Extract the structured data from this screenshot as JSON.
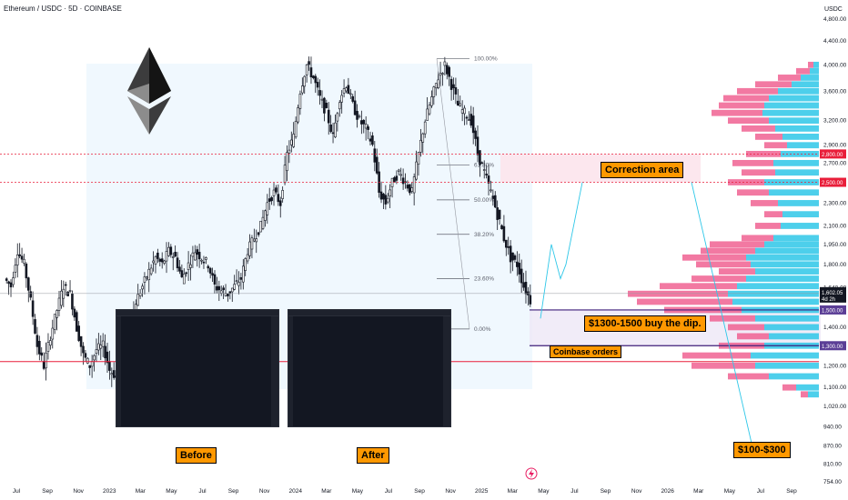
{
  "header": {
    "title": "Ethereum / USDC · 5D · COINBASE",
    "currency": "USDC"
  },
  "colors": {
    "up": "#131722",
    "down": "#131722",
    "red_line": "#e91e3a",
    "purple": "#7b5ba8",
    "cyan": "#2ec7e8",
    "pink": "#f06292",
    "orange": "#ff9800"
  },
  "chart_data": {
    "type": "candlestick",
    "y_axis": {
      "min": 754,
      "max": 5000,
      "scale": "log",
      "ticks": [
        "4,800.00",
        "4,400.00",
        "4,000.00",
        "3,600.00",
        "3,200.00",
        "2,900.00",
        "2,700.00",
        "2,500.00",
        "2,300.00",
        "2,100.00",
        "1,950.00",
        "1,800.00",
        "1,640.00",
        "1,500.00",
        "1,400.00",
        "1,300.00",
        "1,200.00",
        "1,100.00",
        "1,020.00",
        "940.00",
        "870.00",
        "810.00",
        "754.00"
      ],
      "tick_values": [
        4800,
        4400,
        4000,
        3600,
        3200,
        2900,
        2700,
        2500,
        2300,
        2100,
        1950,
        1800,
        1640,
        1500,
        1400,
        1300,
        1200,
        1100,
        1020,
        940,
        870,
        810,
        754
      ]
    },
    "x_axis": {
      "ticks": [
        "Jul",
        "Sep",
        "Nov",
        "2023",
        "Mar",
        "May",
        "Jul",
        "Sep",
        "Nov",
        "2024",
        "Mar",
        "May",
        "Jul",
        "Sep",
        "Nov",
        "2025",
        "Mar",
        "May",
        "Jul",
        "Sep",
        "Nov",
        "2026",
        "Mar",
        "May",
        "Jul",
        "Sep"
      ]
    },
    "price_series": [
      1700,
      1650,
      1900,
      1800,
      1550,
      1300,
      1200,
      1350,
      1500,
      1650,
      1600,
      1400,
      1250,
      1200,
      1280,
      1300,
      1180,
      1150,
      1250,
      1350,
      1550,
      1650,
      1750,
      1850,
      1800,
      1900,
      1850,
      1700,
      1800,
      1900,
      1850,
      1800,
      1650,
      1620,
      1600,
      1650,
      1700,
      1900,
      2000,
      2100,
      2300,
      2400,
      2300,
      2800,
      3000,
      3600,
      4000,
      3800,
      3500,
      3300,
      3000,
      3500,
      3700,
      3400,
      3200,
      3100,
      2900,
      2400,
      2300,
      2500,
      2600,
      2500,
      2400,
      2800,
      3200,
      3500,
      3800,
      4000,
      3700,
      3400,
      3300,
      3200,
      2800,
      2600,
      2400,
      2200,
      2000,
      1850,
      1800,
      1650,
      1560
    ],
    "current_price": "1,602.05",
    "countdown": "4d 2h",
    "price_tags": [
      {
        "label": "2,800.00",
        "value": 2800,
        "color": "#e91e3a"
      },
      {
        "label": "2,500.00",
        "value": 2500,
        "color": "#e91e3a"
      },
      {
        "label": "1,500.00",
        "value": 1500,
        "color": "#5b3e96"
      },
      {
        "label": "1,300.00",
        "value": 1300,
        "color": "#5b3e96"
      }
    ],
    "fib_levels": [
      {
        "label": "100.00%",
        "value": 4100
      },
      {
        "label": "61.80%",
        "value": 2680
      },
      {
        "label": "50.00%",
        "value": 2330
      },
      {
        "label": "38.20%",
        "value": 2030
      },
      {
        "label": "23.60%",
        "value": 1700
      },
      {
        "label": "0.00%",
        "value": 1390
      }
    ],
    "red_line_value": 1220,
    "volume_profile": [
      {
        "price": 4000,
        "pink": 12,
        "cyan": 6
      },
      {
        "price": 3900,
        "pink": 25,
        "cyan": 10
      },
      {
        "price": 3800,
        "pink": 45,
        "cyan": 20
      },
      {
        "price": 3700,
        "pink": 70,
        "cyan": 30
      },
      {
        "price": 3600,
        "pink": 90,
        "cyan": 45
      },
      {
        "price": 3500,
        "pink": 105,
        "cyan": 55
      },
      {
        "price": 3400,
        "pink": 110,
        "cyan": 60
      },
      {
        "price": 3300,
        "pink": 118,
        "cyan": 62
      },
      {
        "price": 3200,
        "pink": 100,
        "cyan": 55
      },
      {
        "price": 3100,
        "pink": 85,
        "cyan": 48
      },
      {
        "price": 3000,
        "pink": 70,
        "cyan": 40
      },
      {
        "price": 2900,
        "pink": 60,
        "cyan": 35
      },
      {
        "price": 2800,
        "pink": 80,
        "cyan": 42
      },
      {
        "price": 2700,
        "pink": 95,
        "cyan": 50
      },
      {
        "price": 2600,
        "pink": 85,
        "cyan": 48
      },
      {
        "price": 2500,
        "pink": 100,
        "cyan": 60
      },
      {
        "price": 2400,
        "pink": 90,
        "cyan": 55
      },
      {
        "price": 2300,
        "pink": 75,
        "cyan": 45
      },
      {
        "price": 2200,
        "pink": 60,
        "cyan": 40
      },
      {
        "price": 2100,
        "pink": 70,
        "cyan": 42
      },
      {
        "price": 2000,
        "pink": 85,
        "cyan": 50
      },
      {
        "price": 1950,
        "pink": 120,
        "cyan": 60
      },
      {
        "price": 1900,
        "pink": 130,
        "cyan": 70
      },
      {
        "price": 1850,
        "pink": 150,
        "cyan": 80
      },
      {
        "price": 1800,
        "pink": 135,
        "cyan": 75
      },
      {
        "price": 1750,
        "pink": 110,
        "cyan": 70
      },
      {
        "price": 1700,
        "pink": 140,
        "cyan": 80
      },
      {
        "price": 1650,
        "pink": 175,
        "cyan": 90
      },
      {
        "price": 1600,
        "pink": 210,
        "cyan": 100
      },
      {
        "price": 1550,
        "pink": 200,
        "cyan": 95
      },
      {
        "price": 1500,
        "pink": 170,
        "cyan": 85
      },
      {
        "price": 1450,
        "pink": 120,
        "cyan": 70
      },
      {
        "price": 1400,
        "pink": 100,
        "cyan": 60
      },
      {
        "price": 1350,
        "pink": 90,
        "cyan": 55
      },
      {
        "price": 1300,
        "pink": 110,
        "cyan": 60
      },
      {
        "price": 1250,
        "pink": 150,
        "cyan": 75
      },
      {
        "price": 1200,
        "pink": 140,
        "cyan": 70
      },
      {
        "price": 1150,
        "pink": 100,
        "cyan": 55
      },
      {
        "price": 1100,
        "pink": 40,
        "cyan": 25
      },
      {
        "price": 1070,
        "pink": 20,
        "cyan": 12
      }
    ]
  },
  "annotations": {
    "correction": "Correction area",
    "buy_dip": "$1300-1500 buy the dip.",
    "coinbase": "Coinbase orders",
    "target": "$100-$300",
    "before": "Before",
    "after": "After"
  }
}
